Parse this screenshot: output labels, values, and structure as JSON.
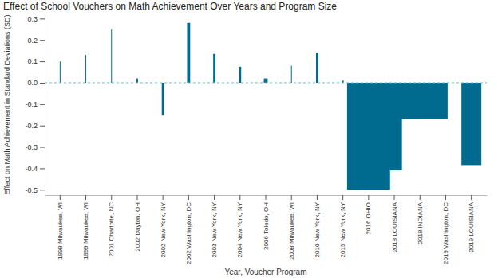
{
  "chart_data": {
    "type": "bar",
    "title": "Effect of School Vouchers on Math Achievement Over Years and Program Size",
    "x_label": "Year, Voucher Program",
    "y_label": "Effect on Math Achievement in Standard Deviations (SD)",
    "categories": [
      "1998 Milwaukee, WI",
      "1999 Milwaukee, WI",
      "2001 Charlotte, NC",
      "2002 Dayton, OH",
      "2002 New York, NY",
      "2002 Washington, DC",
      "2003 New York, NY",
      "2004 New York, NY",
      "2006 Toledo, OH",
      "2008 Milwaukee, WI",
      "2010 New York, NY",
      "2015 New York, NY",
      "2016 OHIO",
      "2018 LOUISIANA",
      "2018 INDIANA",
      "2019 Washington, DC",
      "2019 LOUISIANA"
    ],
    "values": [
      0.1,
      0.13,
      0.25,
      0.02,
      -0.15,
      0.28,
      0.135,
      0.075,
      0.02,
      0.08,
      0.14,
      0.01,
      -0.5,
      -0.41,
      -0.17,
      -0.01,
      -0.385
    ],
    "program_size": [
      1,
      1,
      1,
      2,
      3,
      4,
      3,
      3,
      5,
      1,
      3,
      2,
      56,
      20,
      72,
      3,
      26
    ],
    "color": "#006b8f",
    "ylim": [
      -0.525,
      0.32
    ],
    "yticks": [
      -0.5,
      -0.4,
      -0.3,
      -0.2,
      -0.1,
      {
        "value": 0,
        "label": "0.0"
      },
      0.1,
      0.2,
      0.3
    ],
    "grid": false
  }
}
